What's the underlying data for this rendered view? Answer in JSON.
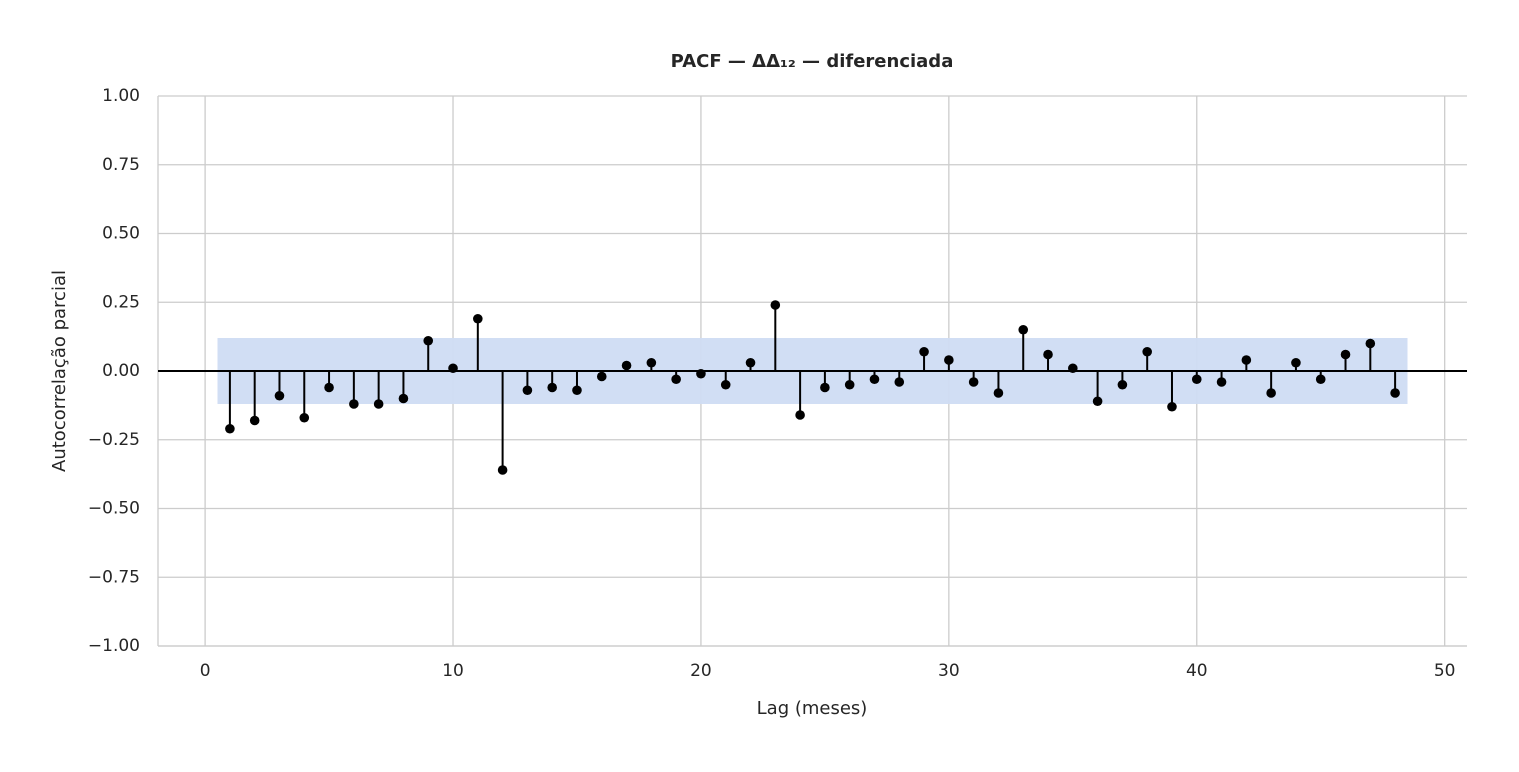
{
  "chart_data": {
    "type": "stem",
    "title": "PACF — ΔΔ₁₂ — diferenciada",
    "xlabel": "Lag (meses)",
    "ylabel": "Autocorrelação parcial",
    "x": [
      1,
      2,
      3,
      4,
      5,
      6,
      7,
      8,
      9,
      10,
      11,
      12,
      13,
      14,
      15,
      16,
      17,
      18,
      19,
      20,
      21,
      22,
      23,
      24,
      25,
      26,
      27,
      28,
      29,
      30,
      31,
      32,
      33,
      34,
      35,
      36,
      37,
      38,
      39,
      40,
      41,
      42,
      43,
      44,
      45,
      46,
      47,
      48
    ],
    "values": [
      -0.21,
      -0.18,
      -0.09,
      -0.17,
      -0.06,
      -0.12,
      -0.12,
      -0.1,
      0.11,
      0.01,
      0.19,
      -0.36,
      -0.07,
      -0.06,
      -0.07,
      -0.02,
      0.02,
      0.03,
      -0.03,
      -0.01,
      -0.05,
      0.03,
      0.24,
      -0.16,
      -0.06,
      -0.05,
      -0.03,
      -0.04,
      0.07,
      0.04,
      -0.04,
      -0.08,
      0.15,
      0.06,
      0.01,
      -0.11,
      -0.05,
      0.07,
      -0.13,
      -0.03,
      -0.04,
      0.04,
      -0.08,
      0.03,
      -0.03,
      0.06,
      0.1,
      -0.08
    ],
    "color": "#000000",
    "band": {
      "lower": -0.12,
      "upper": 0.12,
      "color": "#cfdcf3"
    },
    "xlim": [
      -1.9,
      50.9
    ],
    "xticks": [
      0,
      10,
      20,
      30,
      40,
      50
    ],
    "ylim": [
      -1,
      1
    ],
    "yticks": [
      {
        "value": -1,
        "label": "−1.00"
      },
      {
        "value": -0.75,
        "label": "−0.75"
      },
      {
        "value": -0.5,
        "label": "−0.50"
      },
      {
        "value": -0.25,
        "label": "−0.25"
      },
      {
        "value": 0,
        "label": "0.00"
      },
      {
        "value": 0.25,
        "label": "0.25"
      },
      {
        "value": 0.5,
        "label": "0.50"
      },
      {
        "value": 0.75,
        "label": "0.75"
      },
      {
        "value": 1,
        "label": "1.00"
      }
    ],
    "grid": true
  }
}
